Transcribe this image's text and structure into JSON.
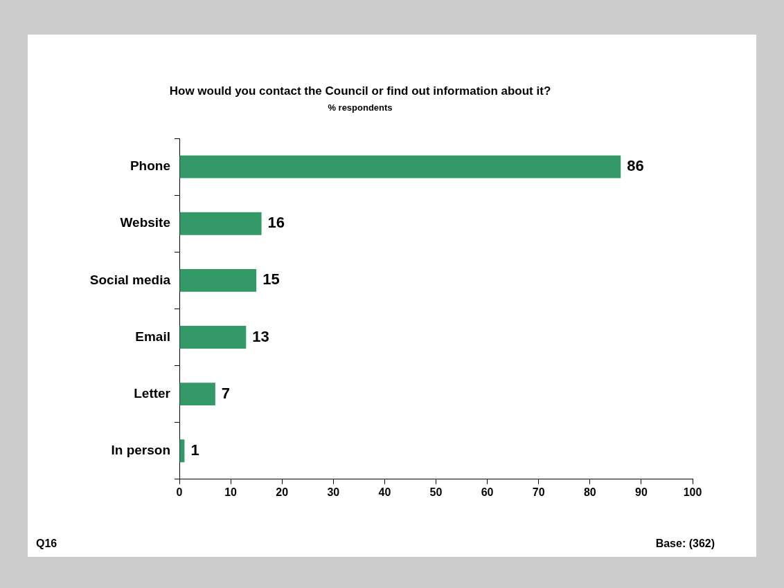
{
  "chart_data": {
    "type": "bar",
    "orientation": "horizontal",
    "title": "How would you contact the Council or find out information about it?",
    "subtitle": "% respondents",
    "categories": [
      "Phone",
      "Website",
      "Social media",
      "Email",
      "Letter",
      "In person"
    ],
    "values": [
      86,
      16,
      15,
      13,
      7,
      1
    ],
    "color": "#339966",
    "xlim": [
      0,
      100
    ],
    "xticks": [
      0,
      10,
      20,
      30,
      40,
      50,
      60,
      70,
      80,
      90,
      100
    ],
    "grid": false,
    "legend": false,
    "data_labels": true,
    "annotations": [
      "Q16",
      "Base: (362)"
    ]
  }
}
